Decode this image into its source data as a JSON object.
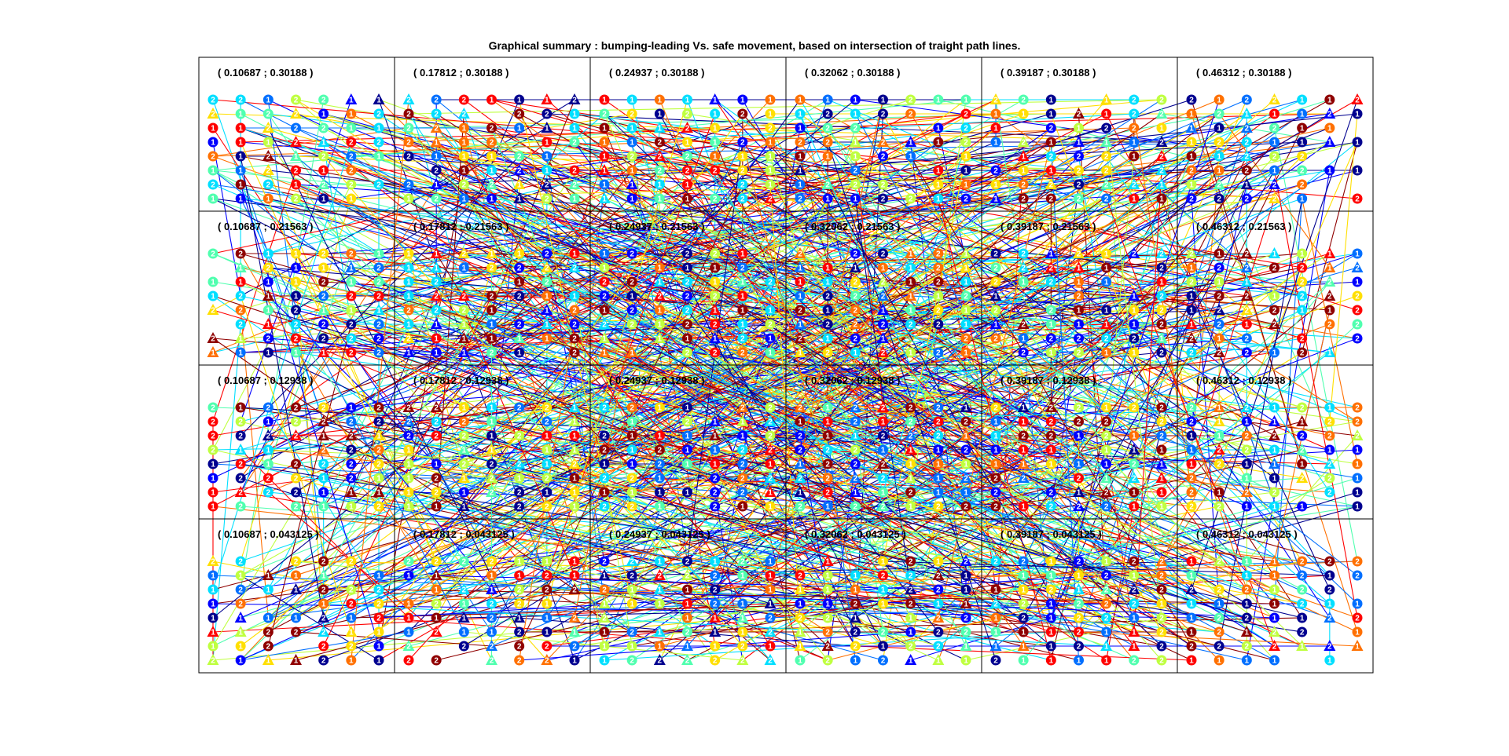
{
  "chart_data": {
    "type": "scatter",
    "title": "Graphical summary : bumping-leading Vs. safe movement, based on intersection of traight path lines.",
    "xlabel": "",
    "ylabel": "",
    "grid_rows": 4,
    "grid_cols": 6,
    "grid": false,
    "panel_labels": [
      [
        "( 0.10687 ; 0.30188 )",
        "( 0.17812 ; 0.30188 )",
        "( 0.24937 ; 0.30188 )",
        "( 0.32062 ; 0.30188 )",
        "( 0.39187 ; 0.30188 )",
        "( 0.46312 ; 0.30188 )"
      ],
      [
        "( 0.10687 ; 0.21563 )",
        "( 0.17812 ; 0.21563 )",
        "( 0.24937 ; 0.21563 )",
        "( 0.32062 ; 0.21563 )",
        "( 0.39187 ; 0.21563 )",
        "( 0.46312 ; 0.21563 )"
      ],
      [
        "( 0.10687 ; 0.12938 )",
        "( 0.17812 ; 0.12938 )",
        "( 0.24937 ; 0.12938 )",
        "( 0.32062 ; 0.12938 )",
        "( 0.39187 ; 0.12938 )",
        "( 0.46312 ; 0.12938 )"
      ],
      [
        "( 0.10687 ; 0.043125 )",
        "( 0.17812 ; 0.043125 )",
        "( 0.24937 ; 0.043125 )",
        "( 0.32062 ; 0.043125 )",
        "( 0.39187 ; 0.043125 )",
        "( 0.46312 ; 0.043125 )"
      ]
    ],
    "marker_labels": [
      "1",
      "2"
    ],
    "marker_shapes": [
      "circle",
      "triangle"
    ],
    "markers_per_panel_grid": [
      7,
      8
    ],
    "colormap": [
      "#00008f",
      "#0000ff",
      "#006fff",
      "#00dfff",
      "#50ffaf",
      "#bfff40",
      "#ffdf00",
      "#ff7000",
      "#ff0000",
      "#8f0000"
    ],
    "colormap_name": "jet",
    "axis_border_color": "#000000"
  }
}
